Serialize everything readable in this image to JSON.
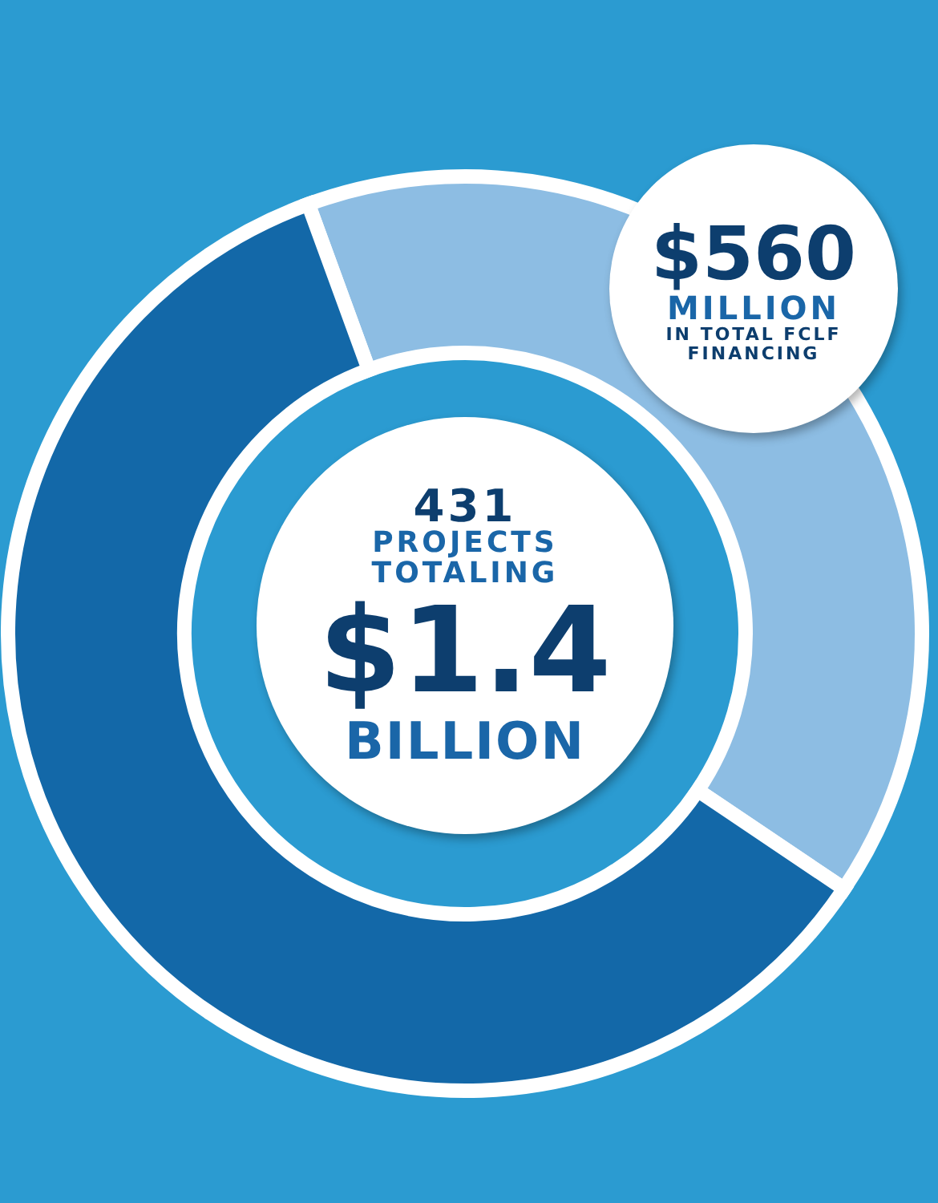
{
  "chart_data": {
    "type": "donut",
    "categories": [
      null,
      null
    ],
    "values": [
      40,
      60
    ],
    "colors": [
      "#8dbde3",
      "#1368a8"
    ],
    "annotations": [
      "$560",
      "MILLION",
      "IN TOTAL FCLF FINANCING",
      "431",
      "PROJECTS TOTALING",
      "$1.4",
      "BILLION"
    ]
  }
}
